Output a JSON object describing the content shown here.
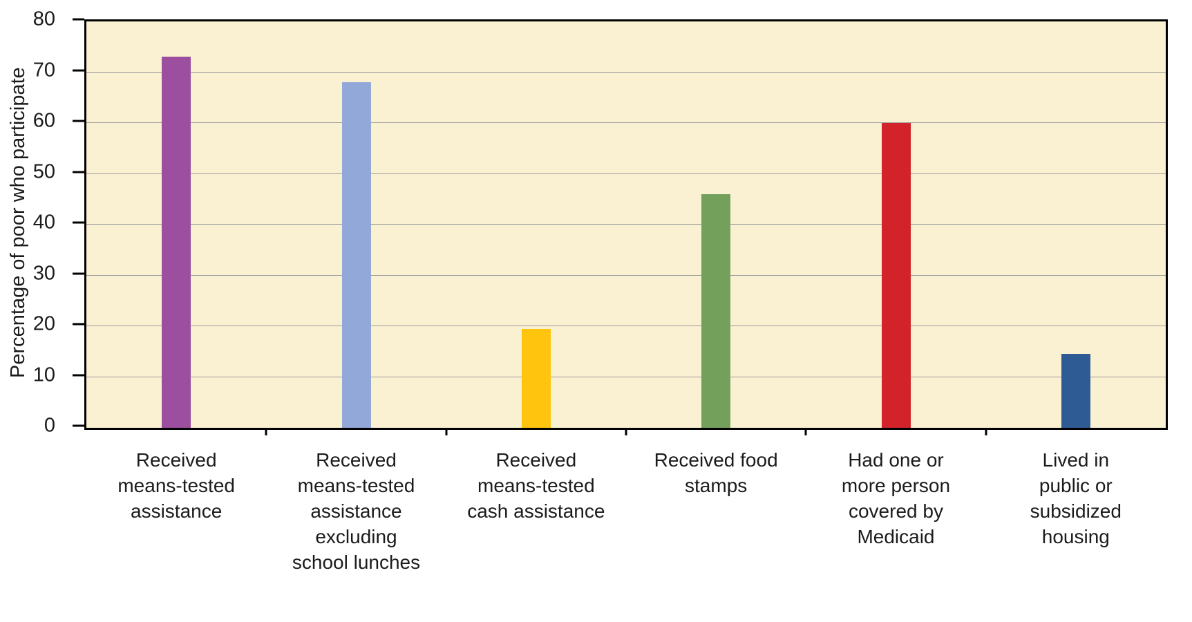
{
  "chart_data": {
    "type": "bar",
    "title": "",
    "ylabel": "Percentage of poor who participate",
    "xlabel": "",
    "ylim": [
      0,
      80
    ],
    "yticks": [
      0,
      10,
      20,
      30,
      40,
      50,
      60,
      70,
      80
    ],
    "grid": "horizontal",
    "legend": "none",
    "plot_background": "#faf0d2",
    "gridline_color": "#9b9b9b",
    "categories": [
      "Received\nmeans-tested\nassistance",
      "Received\nmeans-tested\nassistance\nexcluding\nschool lunches",
      "Received\nmeans-tested\ncash assistance",
      "Received food\nstamps",
      "Had one or\nmore person\ncovered by\nMedicaid",
      "Lived in\npublic or\nsubsidized\nhousing"
    ],
    "values": [
      73,
      68,
      19.5,
      46,
      60,
      14.5
    ],
    "bar_colors": [
      "#9b4f9e",
      "#92a8d8",
      "#fec40e",
      "#73a15c",
      "#d2232a",
      "#2f5b94"
    ]
  }
}
